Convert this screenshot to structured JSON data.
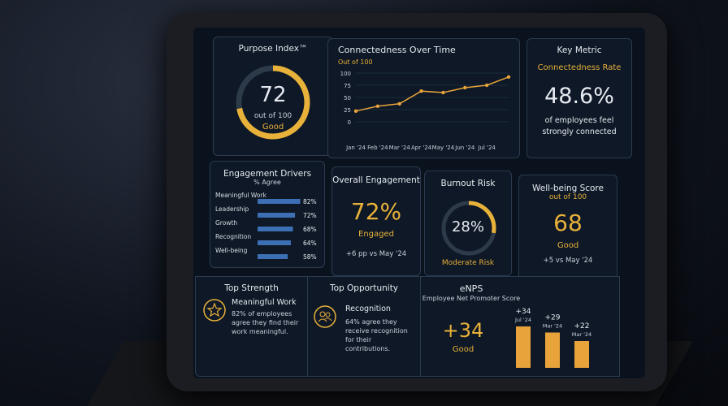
{
  "purpose_index": {
    "title": "Purpose Index™",
    "value": 72,
    "scale_label": "out of",
    "scale": 100,
    "status": "Good",
    "color": "#e8b13a"
  },
  "connectedness": {
    "type": "line",
    "title": "Connectedness Over Time",
    "subtitle": "Out of 100",
    "categories": [
      "Jan '24",
      "Feb '24",
      "Mar '24",
      "Apr '24",
      "May '24",
      "Jun '24",
      "Jul '24",
      null
    ],
    "values": [
      22,
      32,
      37,
      63,
      60,
      70,
      75,
      92
    ],
    "ylim": [
      0,
      100
    ],
    "yticks": [
      0,
      25,
      50,
      75,
      100
    ],
    "grid": true,
    "color": "#e8a33a"
  },
  "key_metric": {
    "title": "Key Metric",
    "name": "Connectedness Rate",
    "value": "48.6%",
    "caption": "of employees feel strongly connected"
  },
  "engagement_drivers": {
    "type": "bar",
    "title": "Engagement Drivers",
    "subtitle": "% Agree",
    "categories": [
      "Meaningful Work",
      "Leadership",
      "Growth",
      "Recognition",
      "Well-being"
    ],
    "values": [
      82,
      72,
      68,
      64,
      58
    ],
    "value_labels": [
      "82%",
      "72%",
      "68%",
      "64%",
      "58%"
    ],
    "xlim": [
      0,
      100
    ],
    "color": "#3d6fb5"
  },
  "overall_engagement": {
    "title": "Overall Engagement",
    "value": "72%",
    "status": "Engaged",
    "change": "+6 pp vs May '24"
  },
  "burnout_risk": {
    "title": "Burnout Risk",
    "value": 28,
    "value_label": "28%",
    "status": "Moderate Risk",
    "color": "#e8b13a"
  },
  "wellbeing": {
    "title": "Well-being Score",
    "subtitle": "out of 100",
    "value": "68",
    "status": "Good",
    "change": "+5 vs May '24"
  },
  "top_strength": {
    "title": "Top Strength",
    "name": "Meaningful Work",
    "text": "82% of employees agree they find their work meaningful."
  },
  "top_opportunity": {
    "title": "Top Opportunity",
    "name": "Recognition",
    "text": "64% agree they receive recognition for their contributions."
  },
  "enps": {
    "type": "bar",
    "title": "eNPS",
    "subtitle": "Employee Net Promoter Score",
    "value": "+34",
    "status": "Good",
    "categories": [
      "Jul '24",
      "Mar '24",
      "Mar '24"
    ],
    "values": [
      34,
      29,
      22
    ],
    "value_labels": [
      "+34",
      "+29",
      "+22"
    ],
    "ylim": [
      0,
      40
    ],
    "color": "#e8a33a"
  }
}
